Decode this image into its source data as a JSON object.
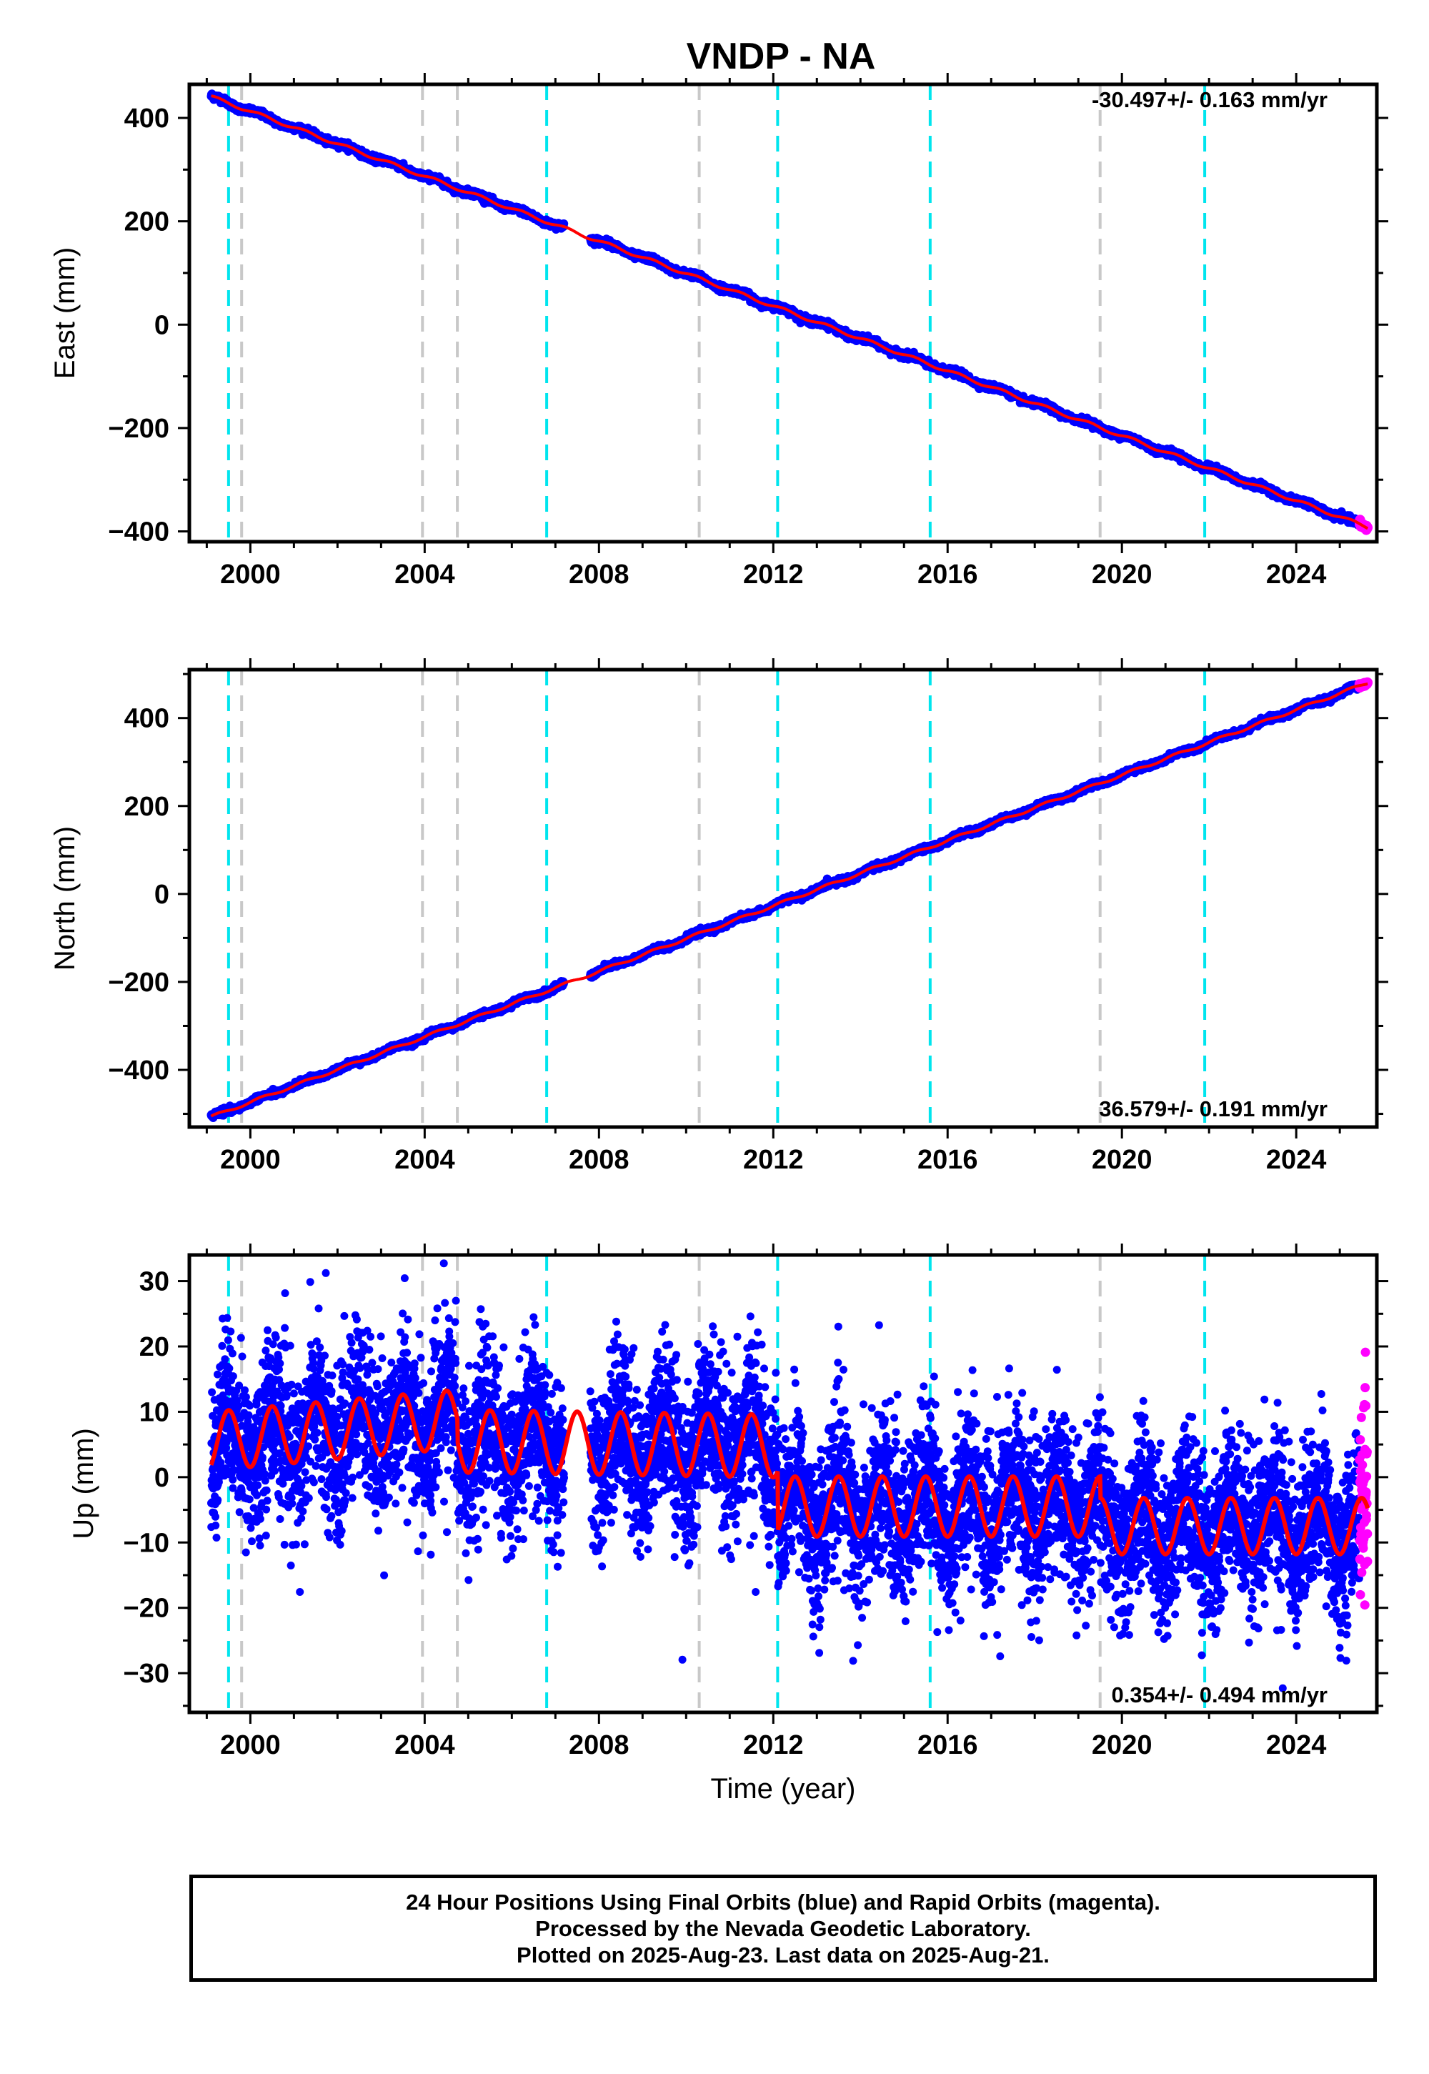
{
  "title": "VNDP - NA",
  "colors": {
    "final_orbits": "#0000ff",
    "rapid_orbits": "#ff00ff",
    "model_fit": "#ff0000",
    "antenna_change_line": "#00e5ee",
    "equipment_change_line": "#c8c8c8",
    "frame": "#000000"
  },
  "chart_data": [
    {
      "type": "scatter",
      "name": "east",
      "ylabel": "East (mm)",
      "xlabel": "",
      "xlim": [
        1998.6,
        2025.85
      ],
      "ylim": [
        -420,
        465
      ],
      "xticks": [
        2000,
        2004,
        2008,
        2012,
        2016,
        2020,
        2024
      ],
      "yticks": [
        -400,
        -200,
        0,
        200,
        400
      ],
      "rate_annotation": "-30.497+/- 0.163 mm/yr",
      "rate_mm_per_yr": -30.497,
      "start": {
        "year": 1999.1,
        "value": 441
      },
      "end": {
        "year": 2025.64,
        "value": -392
      },
      "data_gap": [
        2007.2,
        2007.8
      ],
      "seasonal_amplitude_mm": 3,
      "noise_mm": 3
    },
    {
      "type": "scatter",
      "name": "north",
      "ylabel": "North (mm)",
      "xlabel": "",
      "xlim": [
        1998.6,
        2025.85
      ],
      "ylim": [
        -530,
        510
      ],
      "xticks": [
        2000,
        2004,
        2008,
        2012,
        2016,
        2020,
        2024
      ],
      "yticks": [
        -400,
        -200,
        0,
        200,
        400
      ],
      "rate_annotation": "36.579+/- 0.191 mm/yr",
      "rate_mm_per_yr": 36.579,
      "start": {
        "year": 1999.1,
        "value": -507
      },
      "end": {
        "year": 2025.64,
        "value": 480
      },
      "data_gap": [
        2007.2,
        2007.8
      ],
      "seasonal_amplitude_mm": 3,
      "noise_mm": 3
    },
    {
      "type": "scatter",
      "name": "up",
      "ylabel": "Up (mm)",
      "xlabel": "Time (year)",
      "xlim": [
        1998.6,
        2025.85
      ],
      "ylim": [
        -36,
        34
      ],
      "xticks": [
        2000,
        2004,
        2008,
        2012,
        2016,
        2020,
        2024
      ],
      "yticks": [
        -30,
        -20,
        -10,
        0,
        10,
        20,
        30
      ],
      "rate_annotation": "0.354+/- 0.494 mm/yr",
      "rate_mm_per_yr": 0.354,
      "noise_mm": 6,
      "model_segments": [
        {
          "start": 1999.1,
          "end": 2004.75,
          "offset": 5.5,
          "trend_per_yr": 0.6,
          "amplitude": 4.5,
          "phase": 0.25
        },
        {
          "start": 2004.75,
          "end": 2012.1,
          "offset": 5.5,
          "trend_per_yr": -0.1,
          "amplitude": 4.8,
          "phase": 0.25
        },
        {
          "start": 2012.1,
          "end": 2019.5,
          "offset": -4.5,
          "trend_per_yr": 0.0,
          "amplitude": 4.6,
          "phase": 0.25
        },
        {
          "start": 2019.5,
          "end": 2025.64,
          "offset": -7.5,
          "trend_per_yr": 0.0,
          "amplitude": 4.3,
          "phase": 0.25
        }
      ],
      "data_gap": [
        2007.2,
        2007.8
      ]
    }
  ],
  "events": {
    "antenna_change": [
      1999.5,
      2006.8,
      2012.1,
      2015.6,
      2021.9
    ],
    "equipment_change": [
      1999.8,
      2003.95,
      2004.75,
      2010.3,
      2019.5
    ]
  },
  "rapid_orbits_start_year": 2025.45,
  "footer": {
    "line1": "24 Hour Positions Using Final Orbits (blue) and Rapid Orbits (magenta).",
    "line2": "Processed by the Nevada Geodetic Laboratory.",
    "line3": "Plotted on 2025-Aug-23. Last data on 2025-Aug-21."
  }
}
